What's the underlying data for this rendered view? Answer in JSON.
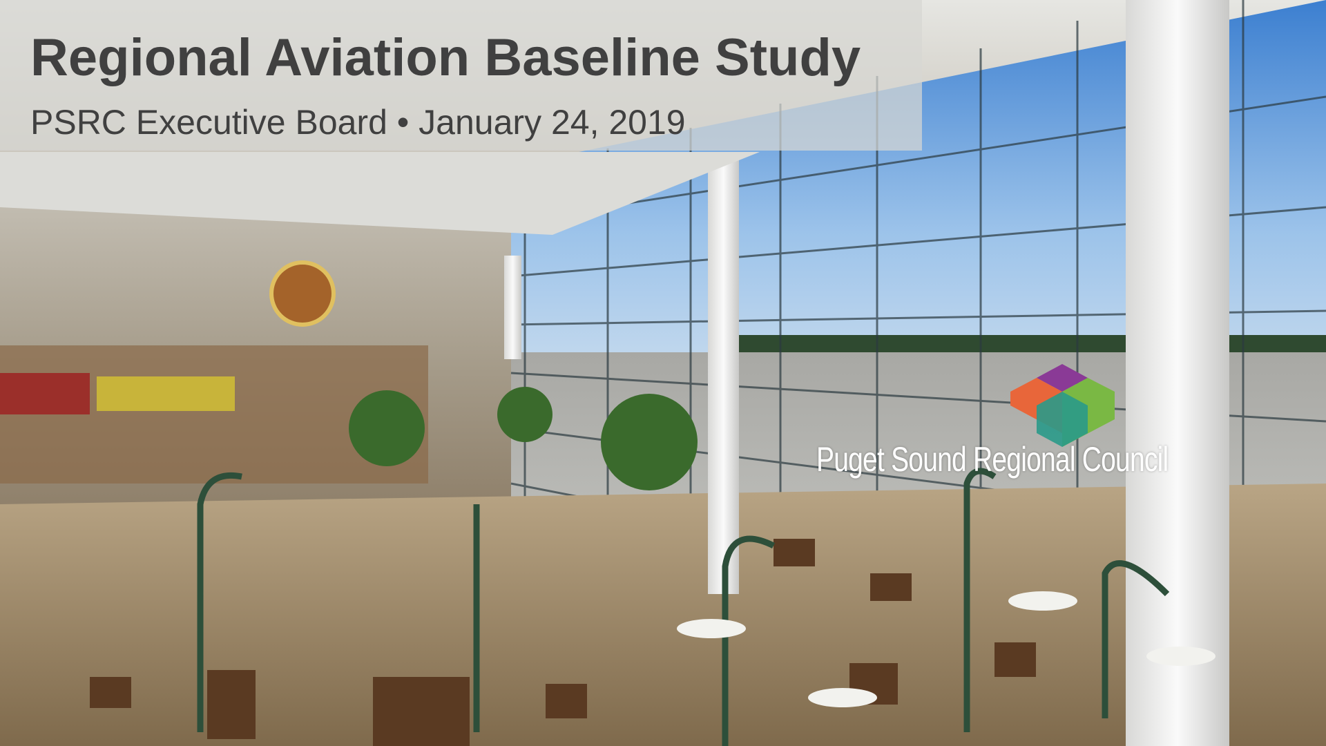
{
  "header": {
    "title": "Regional Aviation Baseline Study",
    "subtitle": "PSRC Executive Board • January 24, 2019"
  },
  "logo": {
    "text": "Puget Sound Regional Council"
  }
}
